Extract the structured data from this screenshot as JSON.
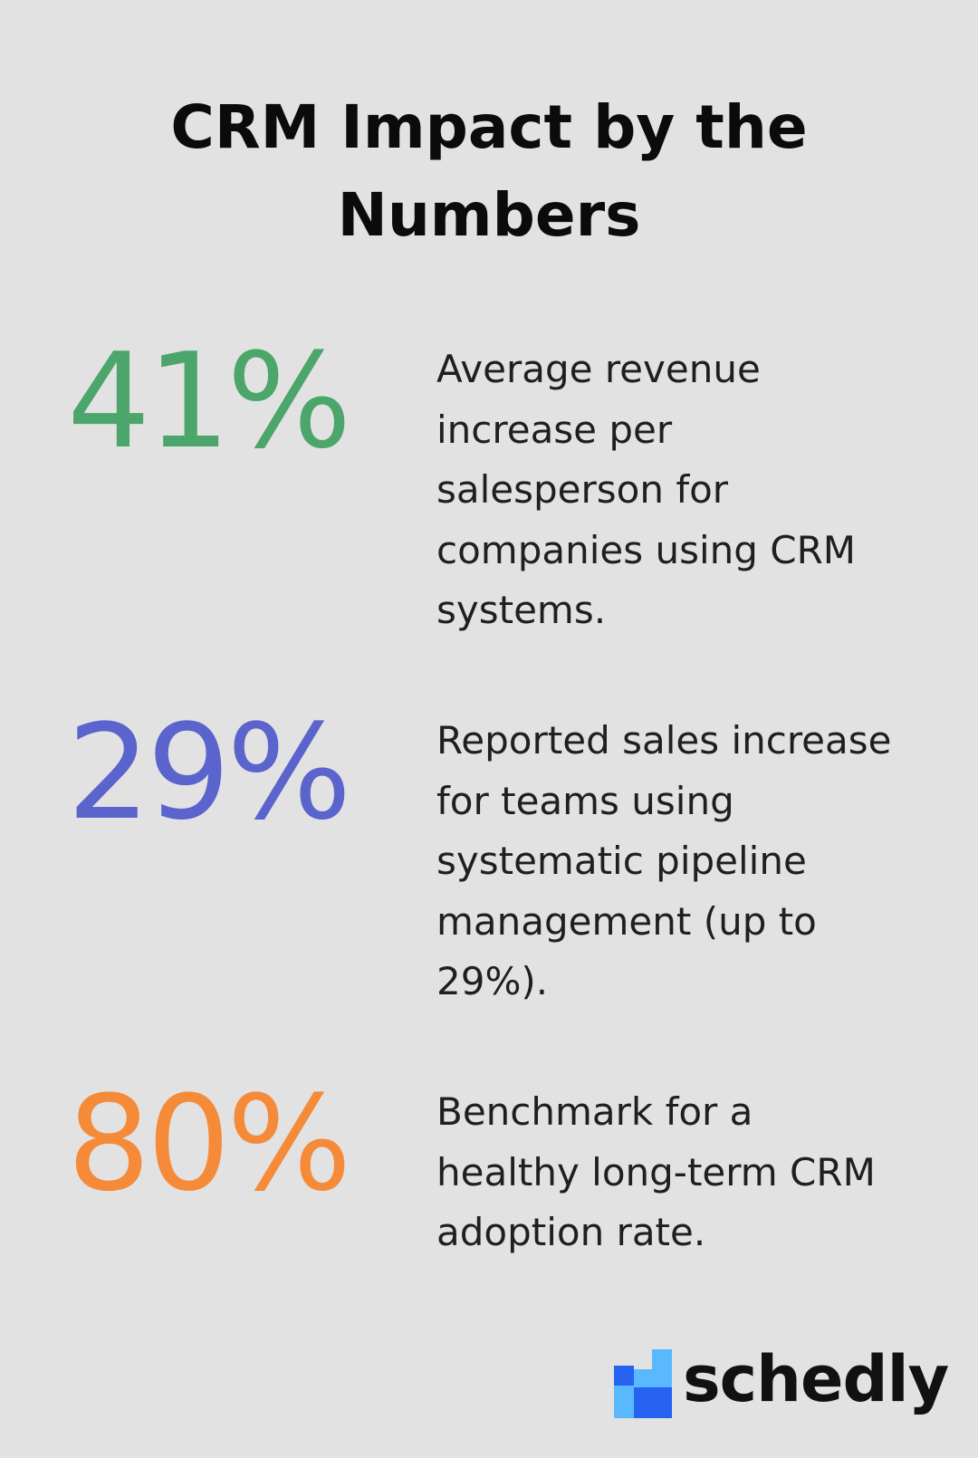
{
  "title": "CRM Impact by the\nNumbers",
  "stats": [
    {
      "value": "41%",
      "color": "#4ca56b",
      "description": "Average revenue\nincrease per\nsalesperson for\ncompanies using CRM\nsystems."
    },
    {
      "value": "29%",
      "color": "#5b63cc",
      "description": "Reported sales increase\nfor teams using\nsystematic pipeline\nmanagement (up to\n29%)."
    },
    {
      "value": "80%",
      "color": "#f58a38",
      "description": "Benchmark for a\nhealthy long-term CRM\nadoption rate."
    }
  ],
  "logo": {
    "text": "schedly",
    "colors": [
      "#2563f0",
      "#5ab8ff"
    ]
  }
}
